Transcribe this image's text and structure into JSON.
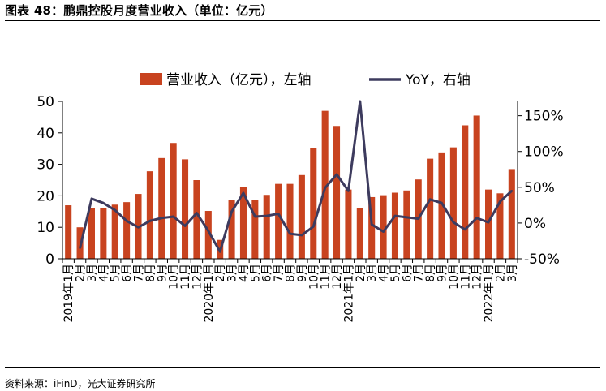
{
  "figure": {
    "title": "图表 48：鹏鼎控股月度营业收入（单位：亿元）",
    "source": "资料来源：iFinD，光大证券研究所"
  },
  "colors": {
    "bar": "#C8431F",
    "line": "#3D3B5E",
    "axis": "#000000"
  },
  "chart_data": {
    "type": "bar",
    "categories": [
      "2019年1月",
      "2月",
      "3月",
      "4月",
      "5月",
      "6月",
      "7月",
      "8月",
      "9月",
      "10月",
      "11月",
      "12月",
      "2020年1月",
      "2月",
      "3月",
      "4月",
      "5月",
      "6月",
      "7月",
      "8月",
      "9月",
      "10月",
      "11月",
      "12月",
      "2021年1月",
      "2月",
      "3月",
      "4月",
      "5月",
      "6月",
      "7月",
      "8月",
      "9月",
      "10月",
      "11月",
      "12月",
      "2022年1月",
      "2月",
      "3月"
    ],
    "x_tick_labels": [
      "2019年1月",
      "2月",
      "3月",
      "4月",
      "5月",
      "6月",
      "7月",
      "8月",
      "9月",
      "10月",
      "11月",
      "12月",
      "2020年1月",
      "2月",
      "3月",
      "4月",
      "5月",
      "6月",
      "7月",
      "8月",
      "9月",
      "10月",
      "11月",
      "12月",
      "2021年1月",
      "2月",
      "3月",
      "4月",
      "5月",
      "6月",
      "7月",
      "8月",
      "9月",
      "10月",
      "11月",
      "12月",
      "2022年1月",
      "2月",
      "3月"
    ],
    "series": [
      {
        "name": "营业收入（亿元），左轴",
        "type": "bar",
        "axis": "left",
        "values": [
          17,
          10,
          16,
          16,
          17.2,
          18,
          20.6,
          27.8,
          32,
          36.8,
          31.6,
          25,
          15.2,
          6,
          18.6,
          22.8,
          18.8,
          20.3,
          23.8,
          23.8,
          26.6,
          35.1,
          47,
          42.2,
          22,
          16,
          19.6,
          20.2,
          21,
          21.7,
          25.2,
          31.8,
          33.8,
          35.4,
          42.4,
          45.5,
          22,
          20.8,
          28.5
        ]
      },
      {
        "name": "YoY，右轴",
        "type": "line",
        "axis": "right",
        "values": [
          null,
          -35,
          34,
          28,
          18,
          3,
          -6,
          3,
          7,
          9,
          -4,
          14,
          -11,
          -40,
          16,
          42,
          9,
          10,
          13,
          -15,
          -17,
          -5,
          49,
          68,
          45,
          170,
          -2,
          -12,
          10,
          8,
          6,
          33,
          28,
          1,
          -9,
          7,
          1,
          30,
          45
        ]
      }
    ],
    "y_left": {
      "min": 0,
      "max": 50,
      "ticks": [
        "0",
        "10",
        "20",
        "30",
        "40",
        "50"
      ]
    },
    "y_right": {
      "min": -50,
      "max": 170,
      "ticks": [
        "-50%",
        "0%",
        "50%",
        "100%",
        "150%"
      ],
      "tick_values": [
        -50,
        0,
        50,
        100,
        150
      ]
    },
    "legend": {
      "position": "top-center"
    }
  }
}
